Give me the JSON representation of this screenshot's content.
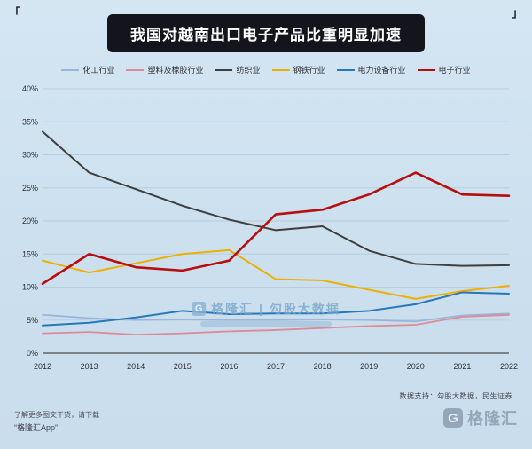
{
  "decor": {
    "corner_left": "「",
    "corner_right": "」"
  },
  "chart_data": {
    "type": "line",
    "title": "我国对越南出口电子产品比重明显加速",
    "xlabel": "",
    "ylabel": "",
    "x": [
      "2012",
      "2013",
      "2014",
      "2015",
      "2016",
      "2017",
      "2018",
      "2019",
      "2020",
      "2021",
      "2022"
    ],
    "ylim": [
      0,
      40
    ],
    "ytick_step": 5,
    "ytick_suffix": "%",
    "grid": true,
    "legend_position": "top",
    "series": [
      {
        "name": "化工行业",
        "color": "#9bb5da",
        "width": 1.8,
        "values": [
          5.8,
          5.3,
          5.0,
          5.1,
          5.0,
          5.0,
          5.1,
          5.0,
          4.8,
          5.7,
          6.0
        ]
      },
      {
        "name": "塑料及橡胶行业",
        "color": "#dd8b96",
        "width": 1.8,
        "values": [
          3.0,
          3.2,
          2.8,
          3.0,
          3.3,
          3.5,
          3.8,
          4.1,
          4.3,
          5.5,
          5.8
        ]
      },
      {
        "name": "纺织业",
        "color": "#3f3f3f",
        "width": 2.0,
        "values": [
          33.5,
          27.3,
          24.8,
          22.3,
          20.2,
          18.6,
          19.2,
          15.5,
          13.5,
          13.2,
          13.3
        ]
      },
      {
        "name": "钢铁行业",
        "color": "#eeb000",
        "width": 2.0,
        "values": [
          14.0,
          12.2,
          13.6,
          15.0,
          15.6,
          11.2,
          11.0,
          9.6,
          8.2,
          9.4,
          10.2
        ]
      },
      {
        "name": "电力设备行业",
        "color": "#2678b8",
        "width": 2.0,
        "values": [
          4.2,
          4.6,
          5.4,
          6.4,
          5.9,
          6.0,
          6.0,
          6.4,
          7.4,
          9.2,
          9.0
        ]
      },
      {
        "name": "电子行业",
        "color": "#b70d0d",
        "width": 2.6,
        "values": [
          10.5,
          15.0,
          13.0,
          12.5,
          14.0,
          21.0,
          21.7,
          24.0,
          27.3,
          24.0,
          23.8
        ]
      }
    ]
  },
  "watermark": {
    "logo_mark": "G",
    "text": "格隆汇 | 勾股大数据"
  },
  "footer": {
    "data_support": "数据支持：勾股大数据，民生证券",
    "promo_line1": "了解更多图文干货，请下载",
    "promo_line2": "“格隆汇App”",
    "logo_mark": "G",
    "logo_text": "格隆汇"
  }
}
